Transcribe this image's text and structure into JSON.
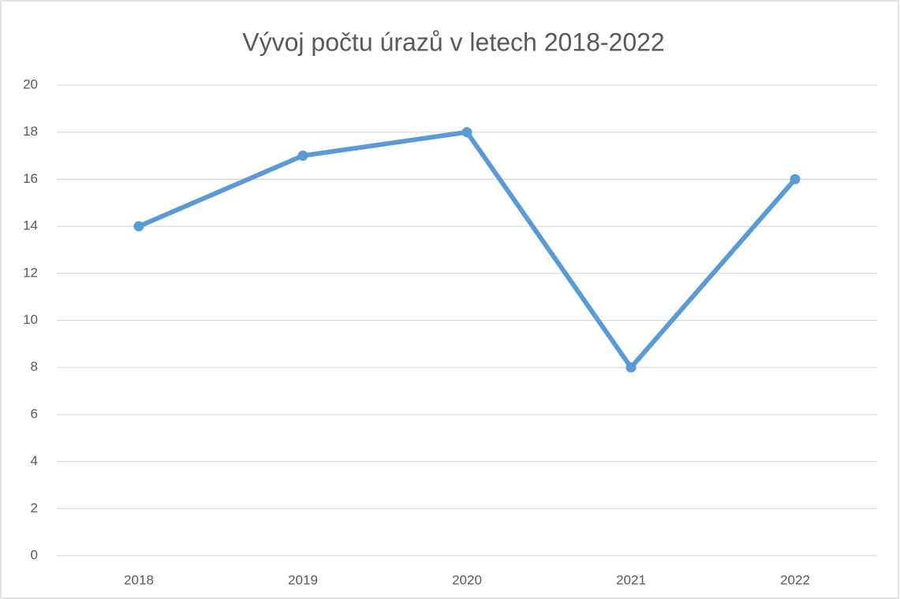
{
  "chart_data": {
    "type": "line",
    "title": "Vývoj počtu úrazů v letech 2018-2022",
    "categories": [
      "2018",
      "2019",
      "2020",
      "2021",
      "2022"
    ],
    "values": [
      14,
      17,
      18,
      8,
      16
    ],
    "color": "#5b9bd5",
    "ylim": [
      0,
      20
    ],
    "yticks": [
      0,
      2,
      4,
      6,
      8,
      10,
      12,
      14,
      16,
      18,
      20
    ],
    "grid": true
  }
}
